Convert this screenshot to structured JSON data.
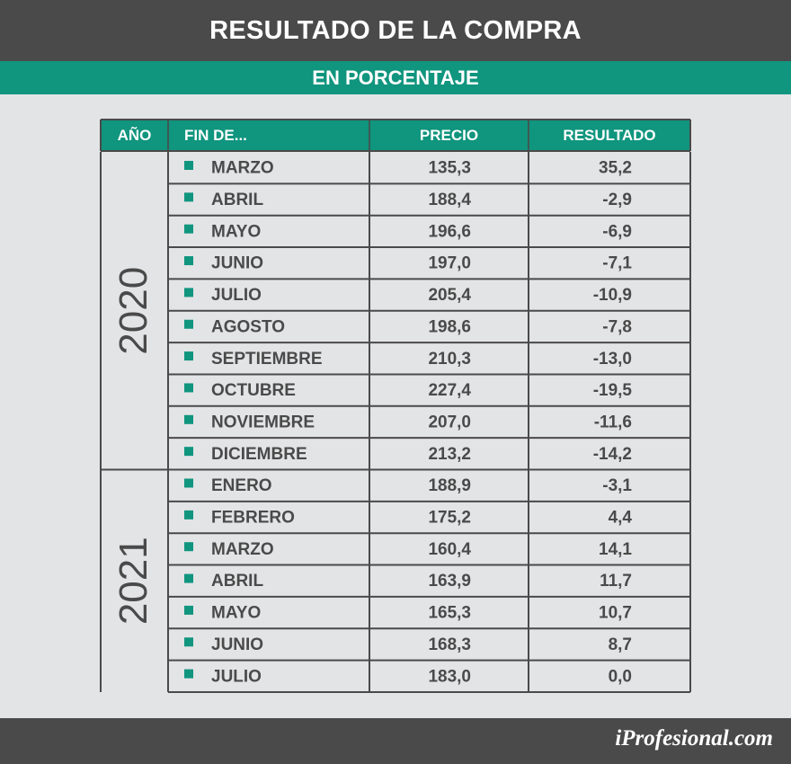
{
  "header": {
    "title": "RESULTADO DE LA COMPRA",
    "subtitle": "EN PORCENTAJE"
  },
  "footer": {
    "logo": "iProfesional.com"
  },
  "colors": {
    "accent": "#10957e",
    "dark": "#4a4a4a",
    "background": "#e3e4e6"
  },
  "chart_data": {
    "type": "table",
    "title": "RESULTADO DE LA COMPRA",
    "subtitle": "EN PORCENTAJE",
    "columns": [
      "AÑO",
      "FIN DE...",
      "PRECIO",
      "RESULTADO"
    ],
    "groups": [
      {
        "year": "2020",
        "rows": [
          {
            "month": "MARZO",
            "precio": "135,3",
            "resultado": "35,2"
          },
          {
            "month": "ABRIL",
            "precio": "188,4",
            "resultado": "-2,9"
          },
          {
            "month": "MAYO",
            "precio": "196,6",
            "resultado": "-6,9"
          },
          {
            "month": "JUNIO",
            "precio": "197,0",
            "resultado": "-7,1"
          },
          {
            "month": "JULIO",
            "precio": "205,4",
            "resultado": "-10,9"
          },
          {
            "month": "AGOSTO",
            "precio": "198,6",
            "resultado": "-7,8"
          },
          {
            "month": "SEPTIEMBRE",
            "precio": "210,3",
            "resultado": "-13,0"
          },
          {
            "month": "OCTUBRE",
            "precio": "227,4",
            "resultado": "-19,5"
          },
          {
            "month": "NOVIEMBRE",
            "precio": "207,0",
            "resultado": "-11,6"
          },
          {
            "month": "DICIEMBRE",
            "precio": "213,2",
            "resultado": "-14,2"
          }
        ]
      },
      {
        "year": "2021",
        "rows": [
          {
            "month": "ENERO",
            "precio": "188,9",
            "resultado": "-3,1"
          },
          {
            "month": "FEBRERO",
            "precio": "175,2",
            "resultado": "4,4"
          },
          {
            "month": "MARZO",
            "precio": "160,4",
            "resultado": "14,1"
          },
          {
            "month": "ABRIL",
            "precio": "163,9",
            "resultado": "11,7"
          },
          {
            "month": "MAYO",
            "precio": "165,3",
            "resultado": "10,7"
          },
          {
            "month": "JUNIO",
            "precio": "168,3",
            "resultado": "8,7"
          },
          {
            "month": "JULIO",
            "precio": "183,0",
            "resultado": "0,0"
          }
        ]
      }
    ]
  }
}
